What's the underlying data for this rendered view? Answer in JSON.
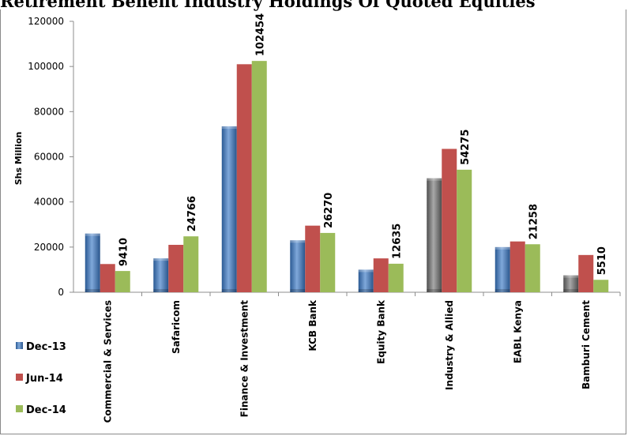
{
  "chart_data": {
    "type": "bar",
    "title": "Retirement Benefit Industry Holdings Of Quoted Equities",
    "ylabel": "Shs Million",
    "xlabel": "",
    "ylim": [
      0,
      120000
    ],
    "yticks": [
      0,
      20000,
      40000,
      60000,
      80000,
      100000,
      120000
    ],
    "categories": [
      "Commercial & Services",
      "Safaricom",
      "Finance & Investment",
      "KCB Bank",
      "Equity Bank",
      "Industry & Allied",
      "EABL Kenya",
      "Bamburi Cement"
    ],
    "series": [
      {
        "name": "Dec-13",
        "color": "#4a7ebb",
        "values": [
          26000,
          15000,
          73500,
          23000,
          10000,
          50500,
          20000,
          7500
        ]
      },
      {
        "name": "Jun-14",
        "color": "#c0504d",
        "values": [
          12500,
          21000,
          101000,
          29500,
          15000,
          63500,
          22500,
          16500
        ]
      },
      {
        "name": "Dec-14",
        "color": "#9bbb59",
        "values": [
          9410,
          24766,
          102454,
          26270,
          12635,
          54275,
          21258,
          5510
        ]
      }
    ],
    "data_labels_series": "Dec-14",
    "data_labels": [
      "9410",
      "24766",
      "102454",
      "26270",
      "12635",
      "54275",
      "21258",
      "5510"
    ],
    "highlight_color": "#7f7f7f",
    "highlight_categories": [
      "Industry & Allied",
      "Bamburi Cement"
    ],
    "legend_position": "bottom-left",
    "grid": false
  }
}
